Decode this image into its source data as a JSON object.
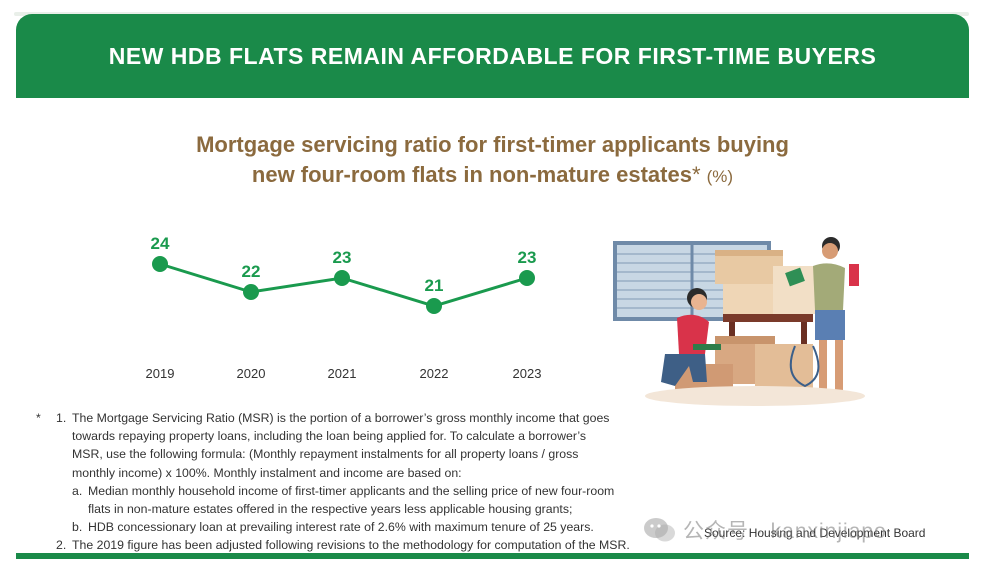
{
  "banner": {
    "title": "NEW HDB FLATS REMAIN AFFORDABLE FOR FIRST-TIME BUYERS"
  },
  "chart_data": {
    "type": "line",
    "title": "Mortgage servicing ratio for first-timer applicants buying new four-room flats in non-mature estates",
    "title_line1": "Mortgage servicing ratio for first-timer applicants buying",
    "title_line2": "new four-room flats in non-mature estates",
    "title_asterisk": "*",
    "unit": "(%)",
    "categories": [
      "2019",
      "2020",
      "2021",
      "2022",
      "2023"
    ],
    "values": [
      24,
      22,
      23,
      21,
      23
    ],
    "line_color": "#1a9a4e",
    "grid": false,
    "legend": false
  },
  "footnotes": {
    "marker": "*",
    "items": [
      {
        "num": "1.",
        "lines": [
          "The Mortgage Servicing Ratio (MSR) is the portion of a borrower’s gross monthly income that goes",
          "towards repaying property loans, including the loan being applied for. To calculate a borrower’s",
          "MSR, use the following formula: (Monthly repayment instalments for all property loans / gross",
          "monthly income) x 100%. Monthly instalment and income are based on:"
        ],
        "subitems": [
          {
            "letter": "a.",
            "lines": [
              "Median monthly household income of first-timer applicants and the selling price of new four-room",
              "flats in non-mature estates offered in the respective years less applicable housing grants;"
            ]
          },
          {
            "letter": "b.",
            "lines": [
              "HDB concessionary loan at prevailing interest rate of 2.6% with maximum tenure of 25 years."
            ]
          }
        ]
      },
      {
        "num": "2.",
        "lines": [
          "The 2019 figure has been adjusted following revisions to the methodology for computation of the MSR."
        ]
      }
    ]
  },
  "source": "Source: Housing and Development Board",
  "watermark": "公众号 · kanxinjiapo",
  "colors": {
    "brand_green": "#1a8a49",
    "title_brown": "#8b6a3e"
  }
}
